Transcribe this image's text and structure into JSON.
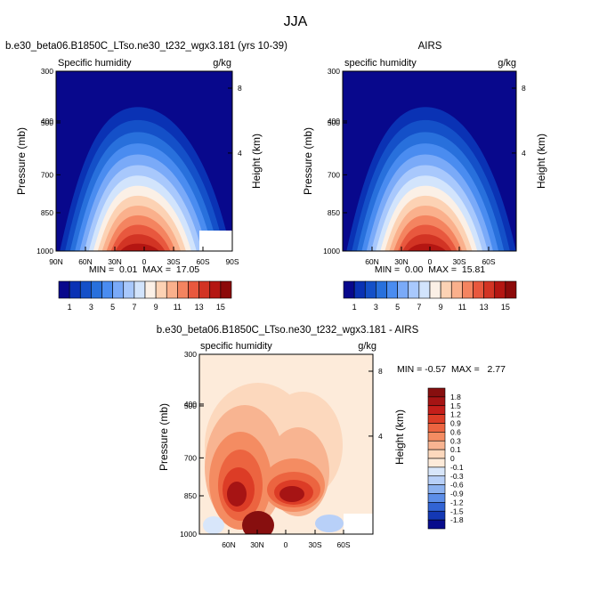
{
  "figure_title": "JJA",
  "chart_data": [
    {
      "type": "heatmap",
      "title": "b.e30_beta06.B1850C_LTso.ne30_t232_wgx3.181 (yrs 10-39)",
      "variable_label": "Specific humidity",
      "units": "g/kg",
      "ylabel": "Pressure (mb)",
      "ylabel_right": "Height (km)",
      "y_ticks": [
        "300",
        "400",
        "500",
        "700",
        "850",
        "1000"
      ],
      "y_ticks_right": [
        "8",
        "4"
      ],
      "x_ticks": [
        "90N",
        "60N",
        "30N",
        "0",
        "30S",
        "60S",
        "90S"
      ],
      "stats_text": "MIN =  0.01  MAX =  17.05",
      "min": 0.01,
      "max": 17.05,
      "xlim": [
        90,
        -90
      ],
      "ylim": [
        1000,
        300
      ],
      "colorbar_labels": [
        "1",
        "3",
        "5",
        "7",
        "9",
        "11",
        "13",
        "15"
      ],
      "colorbar_levels": [
        0,
        1,
        2,
        3,
        4,
        5,
        6,
        7,
        8,
        9,
        10,
        11,
        12,
        13,
        14,
        15,
        16
      ]
    },
    {
      "type": "heatmap",
      "title": "AIRS",
      "variable_label": "specific humidity",
      "units": "g/kg",
      "ylabel": "Pressure (mb)",
      "ylabel_right": "Height (km)",
      "y_ticks": [
        "300",
        "400",
        "500",
        "700",
        "850",
        "1000"
      ],
      "y_ticks_right": [
        "8",
        "4"
      ],
      "x_ticks": [
        "60N",
        "30N",
        "0",
        "30S",
        "60S"
      ],
      "stats_text": "MIN =  0.00  MAX =  15.81",
      "min": 0.0,
      "max": 15.81,
      "xlim": [
        90,
        -90
      ],
      "ylim": [
        1000,
        300
      ],
      "colorbar_labels": [
        "1",
        "3",
        "5",
        "7",
        "9",
        "11",
        "13",
        "15"
      ],
      "colorbar_levels": [
        0,
        1,
        2,
        3,
        4,
        5,
        6,
        7,
        8,
        9,
        10,
        11,
        12,
        13,
        14,
        15,
        16
      ]
    },
    {
      "type": "heatmap",
      "title": "b.e30_beta06.B1850C_LTso.ne30_t232_wgx3.181 - AIRS",
      "variable_label": "specific humidity",
      "units": "g/kg",
      "ylabel": "Pressure (mb)",
      "ylabel_right": "Height (km)",
      "y_ticks": [
        "300",
        "400",
        "500",
        "700",
        "850",
        "1000"
      ],
      "y_ticks_right": [
        "8",
        "4"
      ],
      "x_ticks": [
        "60N",
        "30N",
        "0",
        "30S",
        "60S"
      ],
      "stats_text": "MIN = -0.57  MAX =   2.77",
      "min": -0.57,
      "max": 2.77,
      "xlim": [
        90,
        -90
      ],
      "ylim": [
        1000,
        300
      ],
      "colorbar_labels": [
        "1.8",
        "1.5",
        "1.2",
        "0.9",
        "0.6",
        "0.3",
        "0.1",
        "0",
        "-0.1",
        "-0.3",
        "-0.6",
        "-0.9",
        "-1.2",
        "-1.5",
        "-1.8"
      ]
    }
  ],
  "colors": {
    "seq": [
      "#08088c",
      "#0a32b4",
      "#1450c8",
      "#2870dc",
      "#4a8cf0",
      "#7aaaf8",
      "#a8c8fc",
      "#d2e4fc",
      "#fbf0e6",
      "#fcd2b4",
      "#fab08c",
      "#f48460",
      "#e8583e",
      "#d23424",
      "#b41612",
      "#8c0a0a"
    ],
    "diff": [
      "#870f0f",
      "#a61414",
      "#c41e1a",
      "#dc3c26",
      "#ec6440",
      "#f48c62",
      "#f8b491",
      "#fcd8bd",
      "#fdebda",
      "#d8e6fa",
      "#b8d0f8",
      "#8cb2f0",
      "#5c8ee8",
      "#3264d4",
      "#1438b4",
      "#080c8c"
    ]
  }
}
